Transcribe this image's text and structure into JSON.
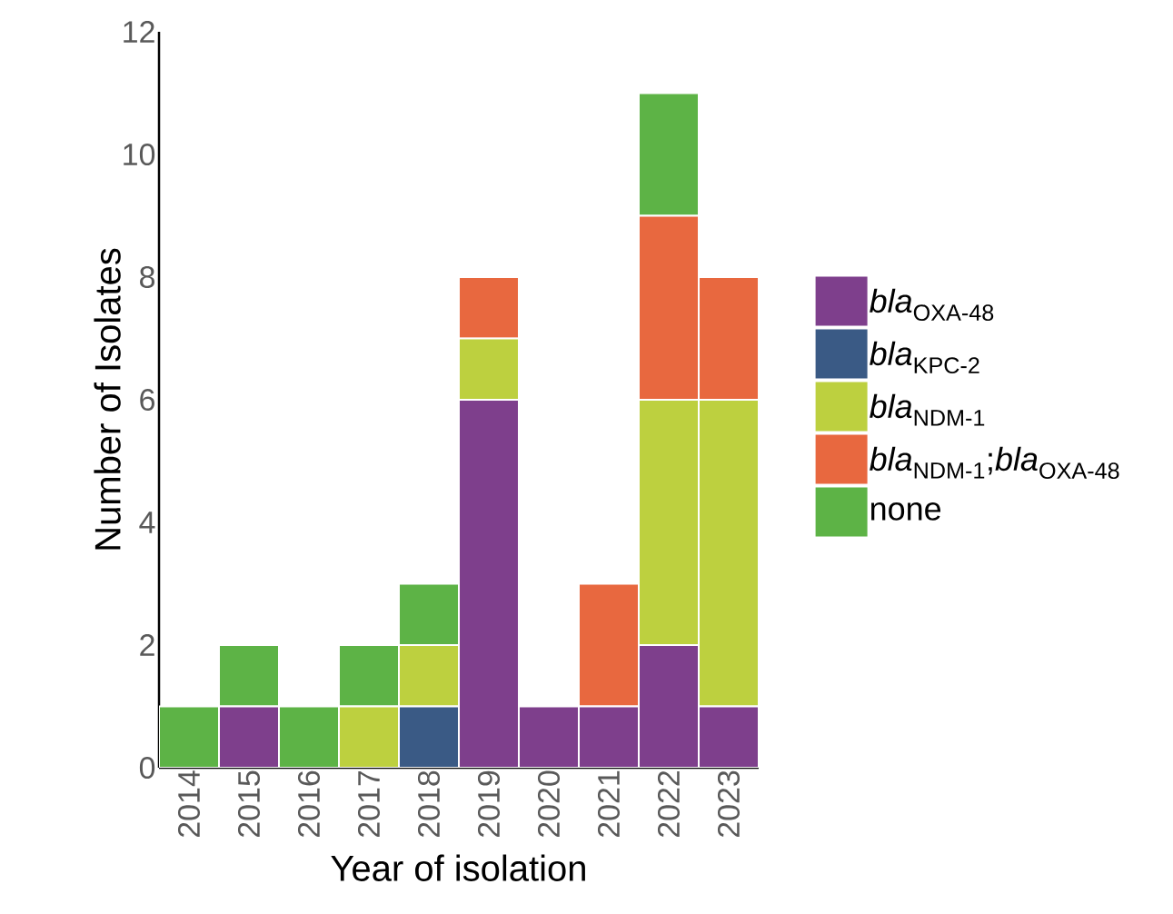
{
  "chart_data": {
    "type": "bar",
    "stacked": true,
    "xlabel": "Year of isolation",
    "ylabel": "Number of Isolates",
    "categories": [
      "2014",
      "2015",
      "2016",
      "2017",
      "2018",
      "2019",
      "2020",
      "2021",
      "2022",
      "2023"
    ],
    "series": [
      {
        "name": "*bla*$_{OXA-48}$",
        "color": "#7e3f8c",
        "values": [
          0,
          1,
          0,
          0,
          0,
          6,
          1,
          1,
          2,
          1
        ]
      },
      {
        "name": "*bla*$_{KPC-2}$",
        "color": "#3a5a85",
        "values": [
          0,
          0,
          0,
          0,
          1,
          0,
          0,
          0,
          0,
          0
        ]
      },
      {
        "name": "*bla*$_{NDM-1}$",
        "color": "#bdd03f",
        "values": [
          0,
          0,
          0,
          1,
          1,
          1,
          0,
          0,
          4,
          5
        ]
      },
      {
        "name": "*bla*$_{NDM-1}$;*bla*$_{OXA-48}$",
        "color": "#e8683f",
        "values": [
          0,
          0,
          0,
          0,
          0,
          1,
          0,
          2,
          3,
          2
        ]
      },
      {
        "name": "none",
        "color": "#5db346",
        "values": [
          1,
          1,
          1,
          1,
          1,
          0,
          0,
          0,
          2,
          0
        ]
      }
    ],
    "ylim": [
      0,
      12
    ],
    "yticks": [
      0,
      2,
      4,
      6,
      8,
      10,
      12
    ],
    "legend": "right",
    "grid": false
  }
}
